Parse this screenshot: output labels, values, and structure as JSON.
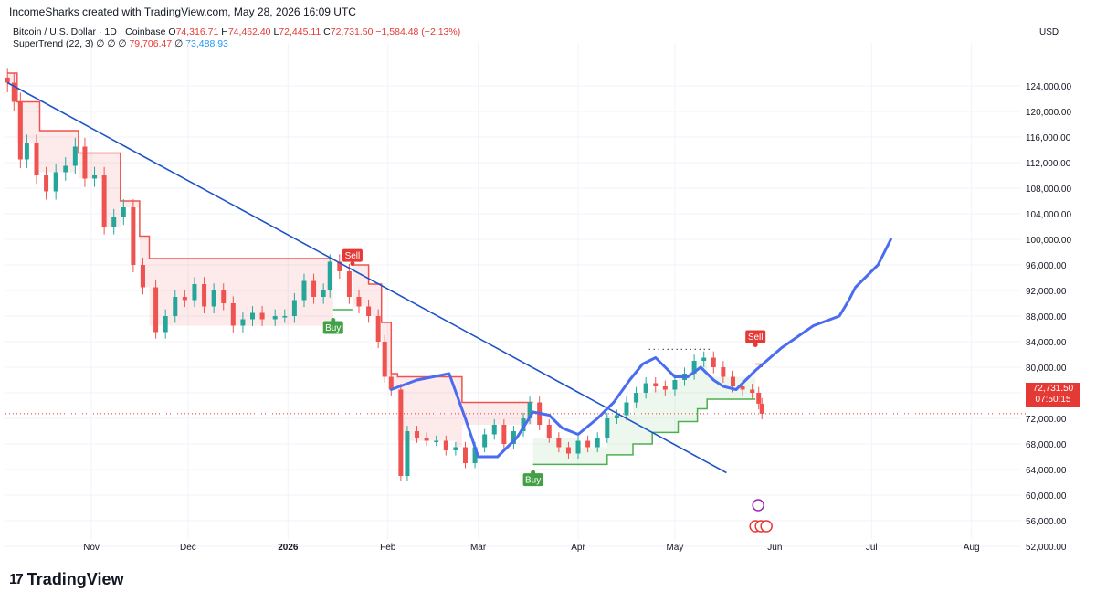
{
  "header": {
    "credit": "IncomeSharks created with TradingView.com, May 28, 2026 16:09 UTC",
    "symbol": "Bitcoin / U.S. Dollar · 1D · Coinbase",
    "ohlc": {
      "o_label": "O",
      "o": "74,316.71",
      "h_label": "H",
      "h": "74,462.40",
      "l_label": "L",
      "l": "72,445.11",
      "c_label": "C",
      "c": "72,731.50",
      "change": "−1,584.48 (−2.13%)"
    },
    "indicator": {
      "name": "SuperTrend (22, 3)",
      "flags": "∅ ∅ ∅",
      "v1": "79,706.47",
      "flags2": "∅",
      "v2": "73,488.93"
    },
    "currency": "USD"
  },
  "price_badge": {
    "price": "72,731.50",
    "countdown": "07:50:15"
  },
  "brand": {
    "logo": "17",
    "name": "TradingView"
  },
  "colors": {
    "up": "#26a69a",
    "down": "#ef5350",
    "supertrend_up": "#4caf50",
    "supertrend_down": "#ef5350",
    "trendline": "#1e53c8",
    "projection": "#4a6cf0",
    "badge": "#e53935"
  },
  "chart_data": {
    "type": "candlestick",
    "title": "Bitcoin / U.S. Dollar · 1D · Coinbase",
    "y_axis": {
      "ticks": [
        "124,000.00",
        "120,000.00",
        "116,000.00",
        "112,000.00",
        "108,000.00",
        "104,000.00",
        "100,000.00",
        "96,000.00",
        "92,000.00",
        "88,000.00",
        "84,000.00",
        "80,000.00",
        "76,000.00",
        "72,000.00",
        "68,000.00",
        "64,000.00",
        "60,000.00",
        "56,000.00",
        "52,000.00"
      ],
      "range": [
        50500,
        126500
      ]
    },
    "x_axis": {
      "ticks": [
        "Nov",
        "Dec",
        "2026",
        "Feb",
        "Mar",
        "Apr",
        "May",
        "Jun",
        "Jul",
        "Aug"
      ]
    },
    "price_series": [
      [
        "2025-10-06",
        124500
      ],
      [
        "2025-10-08",
        121500
      ],
      [
        "2025-10-10",
        112500
      ],
      [
        "2025-10-12",
        115000
      ],
      [
        "2025-10-15",
        110000
      ],
      [
        "2025-10-18",
        107500
      ],
      [
        "2025-10-21",
        110500
      ],
      [
        "2025-10-24",
        111500
      ],
      [
        "2025-10-27",
        114500
      ],
      [
        "2025-10-30",
        109500
      ],
      [
        "2025-11-02",
        110000
      ],
      [
        "2025-11-05",
        102000
      ],
      [
        "2025-11-08",
        103500
      ],
      [
        "2025-11-11",
        105000
      ],
      [
        "2025-11-14",
        96000
      ],
      [
        "2025-11-17",
        92500
      ],
      [
        "2025-11-21",
        85500
      ],
      [
        "2025-11-24",
        88000
      ],
      [
        "2025-11-27",
        91000
      ],
      [
        "2025-11-30",
        90500
      ],
      [
        "2025-12-03",
        93000
      ],
      [
        "2025-12-06",
        89500
      ],
      [
        "2025-12-09",
        92000
      ],
      [
        "2025-12-12",
        90000
      ],
      [
        "2025-12-15",
        86500
      ],
      [
        "2025-12-18",
        87500
      ],
      [
        "2025-12-21",
        88500
      ],
      [
        "2025-12-24",
        87500
      ],
      [
        "2025-12-28",
        88000
      ],
      [
        "2025-12-31",
        88000
      ],
      [
        "2026-01-03",
        90500
      ],
      [
        "2026-01-06",
        93500
      ],
      [
        "2026-01-09",
        91000
      ],
      [
        "2026-01-12",
        92000
      ],
      [
        "2026-01-14",
        96500
      ],
      [
        "2026-01-17",
        95000
      ],
      [
        "2026-01-20",
        91000
      ],
      [
        "2026-01-23",
        89500
      ],
      [
        "2026-01-26",
        88000
      ],
      [
        "2026-01-29",
        84000
      ],
      [
        "2026-01-31",
        78500
      ],
      [
        "2026-02-02",
        76500
      ],
      [
        "2026-02-05",
        63000
      ],
      [
        "2026-02-07",
        70000
      ],
      [
        "2026-02-10",
        69000
      ],
      [
        "2026-02-13",
        68500
      ],
      [
        "2026-02-16",
        68500
      ],
      [
        "2026-02-19",
        67000
      ],
      [
        "2026-02-22",
        67500
      ],
      [
        "2026-02-25",
        65000
      ],
      [
        "2026-02-28",
        67500
      ],
      [
        "2026-03-03",
        69500
      ],
      [
        "2026-03-06",
        71000
      ],
      [
        "2026-03-09",
        68000
      ],
      [
        "2026-03-12",
        70000
      ],
      [
        "2026-03-15",
        72000
      ],
      [
        "2026-03-17",
        74500
      ],
      [
        "2026-03-20",
        71000
      ],
      [
        "2026-03-23",
        69000
      ],
      [
        "2026-03-26",
        67500
      ],
      [
        "2026-03-29",
        66500
      ],
      [
        "2026-04-01",
        68500
      ],
      [
        "2026-04-04",
        67500
      ],
      [
        "2026-04-07",
        69000
      ],
      [
        "2026-04-10",
        72000
      ],
      [
        "2026-04-13",
        72500
      ],
      [
        "2026-04-16",
        74500
      ],
      [
        "2026-04-19",
        76000
      ],
      [
        "2026-04-22",
        77500
      ],
      [
        "2026-04-25",
        77000
      ],
      [
        "2026-04-28",
        76500
      ],
      [
        "2026-05-01",
        78000
      ],
      [
        "2026-05-04",
        79000
      ],
      [
        "2026-05-07",
        81000
      ],
      [
        "2026-05-10",
        81500
      ],
      [
        "2026-05-13",
        80000
      ],
      [
        "2026-05-16",
        78500
      ],
      [
        "2026-05-19",
        77000
      ],
      [
        "2026-05-22",
        76500
      ],
      [
        "2026-05-25",
        76000
      ],
      [
        "2026-05-27",
        74300
      ],
      [
        "2026-05-28",
        72731.5
      ]
    ],
    "supertrend_down": [
      [
        "2025-10-06",
        126000
      ],
      [
        "2025-10-09",
        121500
      ],
      [
        "2025-10-15",
        121500
      ],
      [
        "2025-10-16",
        117000
      ],
      [
        "2025-10-27",
        117000
      ],
      [
        "2025-10-28",
        113500
      ],
      [
        "2025-11-05",
        113500
      ],
      [
        "2025-11-10",
        106000
      ],
      [
        "2025-11-16",
        100500
      ],
      [
        "2025-11-19",
        97000
      ],
      [
        "2026-01-15",
        97000
      ]
    ],
    "supertrend_up_1": [
      [
        "2026-01-15",
        89000
      ],
      [
        "2026-01-21",
        89000
      ]
    ],
    "supertrend_down_2": [
      [
        "2026-01-21",
        96000
      ],
      [
        "2026-01-26",
        93000
      ],
      [
        "2026-01-30",
        87000
      ],
      [
        "2026-02-02",
        79000
      ],
      [
        "2026-02-04",
        78500
      ],
      [
        "2026-02-22",
        78500
      ],
      [
        "2026-02-24",
        74500
      ],
      [
        "2026-03-18",
        74500
      ]
    ],
    "supertrend_up_2": [
      [
        "2026-03-18",
        64800
      ],
      [
        "2026-04-01",
        64800
      ],
      [
        "2026-04-10",
        66300
      ],
      [
        "2026-04-18",
        68000
      ],
      [
        "2026-04-24",
        69800
      ],
      [
        "2026-05-02",
        71500
      ],
      [
        "2026-05-08",
        73500
      ],
      [
        "2026-05-11",
        75000
      ],
      [
        "2026-05-26",
        75000
      ]
    ],
    "supertrend_down_3": [
      [
        "2026-05-26",
        80500
      ],
      [
        "2026-05-28",
        80000
      ]
    ],
    "trendline": [
      [
        "2025-10-06",
        124500
      ],
      [
        "2026-05-17",
        63500
      ]
    ],
    "projection": [
      [
        "2026-02-02",
        76500
      ],
      [
        "2026-02-10",
        78000
      ],
      [
        "2026-02-20",
        79000
      ],
      [
        "2026-02-25",
        72000
      ],
      [
        "2026-03-01",
        66000
      ],
      [
        "2026-03-07",
        66000
      ],
      [
        "2026-03-13",
        69000
      ],
      [
        "2026-03-18",
        73000
      ],
      [
        "2026-03-23",
        72500
      ],
      [
        "2026-03-27",
        70500
      ],
      [
        "2026-04-01",
        69500
      ],
      [
        "2026-04-07",
        72000
      ],
      [
        "2026-04-12",
        74500
      ],
      [
        "2026-04-17",
        78000
      ],
      [
        "2026-04-21",
        80500
      ],
      [
        "2026-04-25",
        81500
      ],
      [
        "2026-04-28",
        80000
      ],
      [
        "2026-05-01",
        78500
      ],
      [
        "2026-05-05",
        78500
      ],
      [
        "2026-05-09",
        80000
      ],
      [
        "2026-05-13",
        78000
      ],
      [
        "2026-05-16",
        77000
      ],
      [
        "2026-05-20",
        76500
      ],
      [
        "2026-05-26",
        79500
      ],
      [
        "2026-06-03",
        83000
      ],
      [
        "2026-06-13",
        86500
      ],
      [
        "2026-06-21",
        88000
      ],
      [
        "2026-06-24",
        90500
      ],
      [
        "2026-06-26",
        92500
      ],
      [
        "2026-06-30",
        94500
      ],
      [
        "2026-07-03",
        96000
      ],
      [
        "2026-07-07",
        100000
      ]
    ],
    "markers": [
      {
        "label": "Sell",
        "date": "2026-01-21",
        "price": 96200,
        "kind": "sell"
      },
      {
        "label": "Buy",
        "date": "2026-01-15",
        "price": 87500,
        "kind": "buy"
      },
      {
        "label": "Buy",
        "date": "2026-03-18",
        "price": 63700,
        "kind": "buy"
      },
      {
        "label": "Sell",
        "date": "2026-05-26",
        "price": 83500,
        "kind": "sell"
      }
    ],
    "last_price": 72731.5
  }
}
